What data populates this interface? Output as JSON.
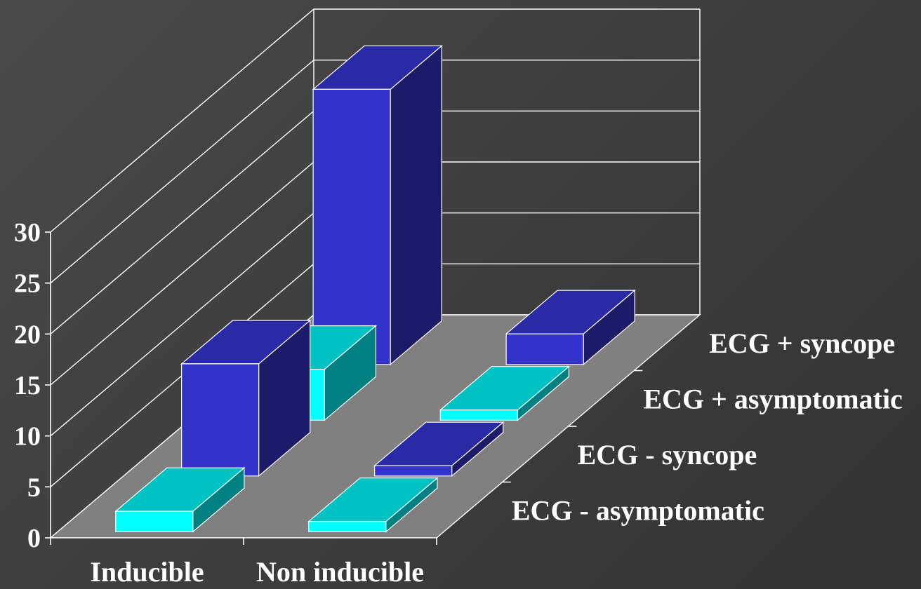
{
  "chart_data": {
    "type": "bar",
    "subtype": "3d-stacked-depth",
    "title": "",
    "xlabel": "",
    "ylabel": "",
    "ylim": [
      0,
      30
    ],
    "yticks": [
      "0",
      "5",
      "10",
      "15",
      "20",
      "25",
      "30"
    ],
    "grid": true,
    "categories": [
      "Inducible",
      "Non inducible"
    ],
    "series": [
      {
        "name": "ECG - asymptomatic",
        "values": [
          2,
          1
        ],
        "color": "#00ffff"
      },
      {
        "name": "ECG - syncope",
        "values": [
          11,
          1
        ],
        "color": "#3333cc"
      },
      {
        "name": "ECG + asymptomatic",
        "values": [
          5,
          1
        ],
        "color": "#00ffff"
      },
      {
        "name": "ECG + syncope",
        "values": [
          27,
          3
        ],
        "color": "#3333cc"
      }
    ]
  }
}
